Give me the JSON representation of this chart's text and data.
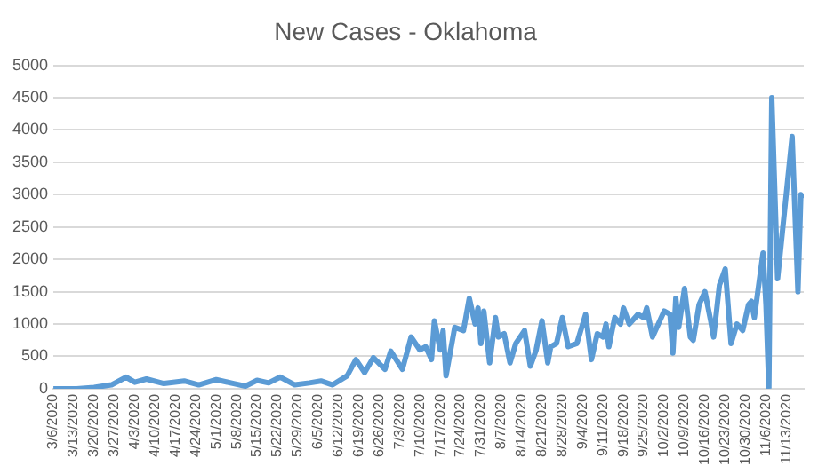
{
  "chart_data": {
    "type": "line",
    "title": "New Cases - Oklahoma",
    "x": [
      "2020-03-06",
      "2020-03-14",
      "2020-03-20",
      "2020-03-26",
      "2020-03-31",
      "2020-04-03",
      "2020-04-07",
      "2020-04-13",
      "2020-04-20",
      "2020-04-25",
      "2020-05-01",
      "2020-05-07",
      "2020-05-11",
      "2020-05-15",
      "2020-05-19",
      "2020-05-23",
      "2020-05-28",
      "2020-06-02",
      "2020-06-06",
      "2020-06-10",
      "2020-06-15",
      "2020-06-18",
      "2020-06-21",
      "2020-06-24",
      "2020-06-28",
      "2020-06-30",
      "2020-07-04",
      "2020-07-07",
      "2020-07-10",
      "2020-07-12",
      "2020-07-14",
      "2020-07-15",
      "2020-07-17",
      "2020-07-18",
      "2020-07-19",
      "2020-07-22",
      "2020-07-25",
      "2020-07-27",
      "2020-07-29",
      "2020-07-30",
      "2020-07-31",
      "2020-08-01",
      "2020-08-03",
      "2020-08-05",
      "2020-08-06",
      "2020-08-08",
      "2020-08-10",
      "2020-08-12",
      "2020-08-15",
      "2020-08-17",
      "2020-08-19",
      "2020-08-21",
      "2020-08-23",
      "2020-08-24",
      "2020-08-26",
      "2020-08-28",
      "2020-08-30",
      "2020-09-02",
      "2020-09-05",
      "2020-09-07",
      "2020-09-09",
      "2020-09-11",
      "2020-09-12",
      "2020-09-13",
      "2020-09-15",
      "2020-09-17",
      "2020-09-18",
      "2020-09-20",
      "2020-09-23",
      "2020-09-25",
      "2020-09-26",
      "2020-09-28",
      "2020-09-30",
      "2020-10-02",
      "2020-10-04",
      "2020-10-05",
      "2020-10-06",
      "2020-10-07",
      "2020-10-09",
      "2020-10-11",
      "2020-10-12",
      "2020-10-14",
      "2020-10-16",
      "2020-10-18",
      "2020-10-19",
      "2020-10-21",
      "2020-10-23",
      "2020-10-25",
      "2020-10-27",
      "2020-10-29",
      "2020-10-31",
      "2020-11-01",
      "2020-11-02",
      "2020-11-05",
      "2020-11-06",
      "2020-11-07",
      "2020-11-08",
      "2020-11-10",
      "2020-11-15",
      "2020-11-17",
      "2020-11-18",
      "2020-11-19"
    ],
    "series": [
      {
        "color": "#5b9bd5",
        "values": [
          0,
          0,
          20,
          60,
          180,
          100,
          150,
          80,
          120,
          60,
          140,
          80,
          40,
          130,
          90,
          180,
          60,
          90,
          120,
          60,
          200,
          450,
          250,
          480,
          300,
          580,
          300,
          800,
          600,
          650,
          450,
          1050,
          600,
          900,
          200,
          950,
          900,
          1400,
          1000,
          1250,
          700,
          1200,
          400,
          1100,
          800,
          850,
          400,
          700,
          900,
          350,
          600,
          1050,
          400,
          650,
          700,
          1100,
          650,
          700,
          1150,
          450,
          850,
          800,
          1000,
          650,
          1100,
          1000,
          1250,
          1000,
          1150,
          1100,
          1250,
          800,
          1000,
          1200,
          1150,
          550,
          1400,
          950,
          1550,
          800,
          750,
          1300,
          1500,
          1050,
          800,
          1600,
          1850,
          700,
          1000,
          900,
          1300,
          1350,
          1100,
          2100,
          1300,
          0,
          4500,
          1700,
          3900,
          1500,
          3000,
          2950
        ]
      }
    ],
    "xlim": [
      "2020-03-06",
      "2020-11-19"
    ],
    "xticks": [
      {
        "value": "2020-03-06",
        "label": "3/6/2020"
      },
      {
        "value": "2020-03-13",
        "label": "3/13/2020"
      },
      {
        "value": "2020-03-20",
        "label": "3/20/2020"
      },
      {
        "value": "2020-03-27",
        "label": "3/27/2020"
      },
      {
        "value": "2020-04-03",
        "label": "4/3/2020"
      },
      {
        "value": "2020-04-10",
        "label": "4/10/2020"
      },
      {
        "value": "2020-04-17",
        "label": "4/17/2020"
      },
      {
        "value": "2020-04-24",
        "label": "4/24/2020"
      },
      {
        "value": "2020-05-01",
        "label": "5/1/2020"
      },
      {
        "value": "2020-05-08",
        "label": "5/8/2020"
      },
      {
        "value": "2020-05-15",
        "label": "5/15/2020"
      },
      {
        "value": "2020-05-22",
        "label": "5/22/2020"
      },
      {
        "value": "2020-05-29",
        "label": "5/29/2020"
      },
      {
        "value": "2020-06-05",
        "label": "6/5/2020"
      },
      {
        "value": "2020-06-12",
        "label": "6/12/2020"
      },
      {
        "value": "2020-06-19",
        "label": "6/19/2020"
      },
      {
        "value": "2020-06-26",
        "label": "6/26/2020"
      },
      {
        "value": "2020-07-03",
        "label": "7/3/2020"
      },
      {
        "value": "2020-07-10",
        "label": "7/10/2020"
      },
      {
        "value": "2020-07-17",
        "label": "7/17/2020"
      },
      {
        "value": "2020-07-24",
        "label": "7/24/2020"
      },
      {
        "value": "2020-07-31",
        "label": "7/31/2020"
      },
      {
        "value": "2020-08-07",
        "label": "8/7/2020"
      },
      {
        "value": "2020-08-14",
        "label": "8/14/2020"
      },
      {
        "value": "2020-08-21",
        "label": "8/21/2020"
      },
      {
        "value": "2020-08-28",
        "label": "8/28/2020"
      },
      {
        "value": "2020-09-04",
        "label": "9/4/2020"
      },
      {
        "value": "2020-09-11",
        "label": "9/11/2020"
      },
      {
        "value": "2020-09-18",
        "label": "9/18/2020"
      },
      {
        "value": "2020-09-25",
        "label": "9/25/2020"
      },
      {
        "value": "2020-10-02",
        "label": "10/2/2020"
      },
      {
        "value": "2020-10-09",
        "label": "10/9/2020"
      },
      {
        "value": "2020-10-16",
        "label": "10/16/2020"
      },
      {
        "value": "2020-10-23",
        "label": "10/23/2020"
      },
      {
        "value": "2020-10-30",
        "label": "10/30/2020"
      },
      {
        "value": "2020-11-06",
        "label": "11/6/2020"
      },
      {
        "value": "2020-11-13",
        "label": "11/13/2020"
      }
    ],
    "ylim": [
      0,
      5000
    ],
    "yticks": [
      0,
      500,
      1000,
      1500,
      2000,
      2500,
      3000,
      3500,
      4000,
      4500,
      5000
    ],
    "grid": "y",
    "marker": "none",
    "line_style": "solid",
    "legend": false
  }
}
